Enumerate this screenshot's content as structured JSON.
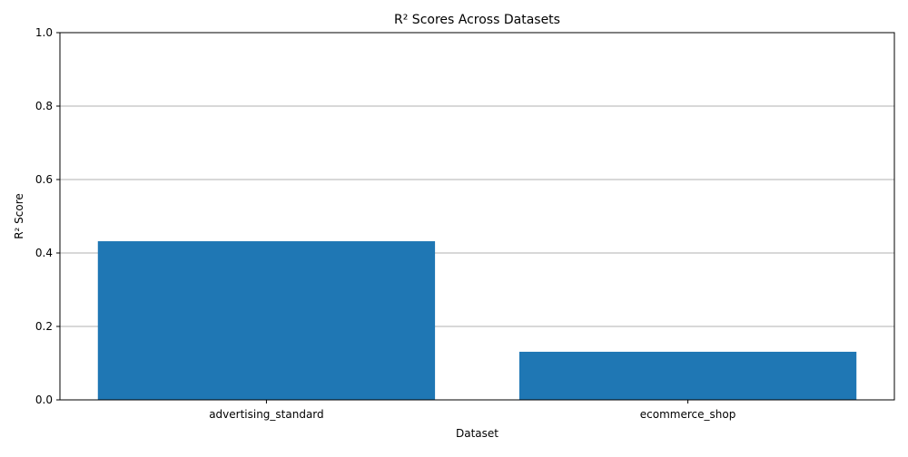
{
  "chart_data": {
    "type": "bar",
    "title": "R² Scores Across Datasets",
    "xlabel": "Dataset",
    "ylabel": "R² Score",
    "categories": [
      "advertising_standard",
      "ecommerce_shop"
    ],
    "values": [
      0.432,
      0.131
    ],
    "ylim": [
      0,
      1
    ],
    "yticks": [
      "0.0",
      "0.2",
      "0.4",
      "0.6",
      "0.8",
      "1.0"
    ],
    "grid": "y-axis only",
    "bar_color": "#1f77b4",
    "grid_color": "#b0b0b0"
  }
}
